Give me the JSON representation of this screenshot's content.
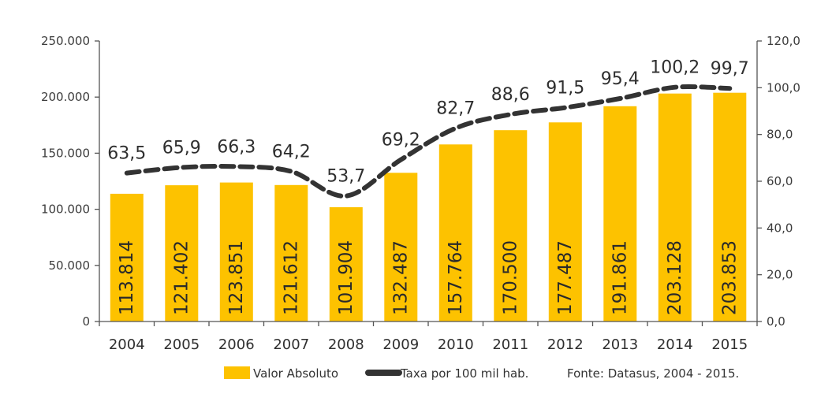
{
  "chart_data": {
    "type": "bar",
    "categories": [
      "2004",
      "2005",
      "2006",
      "2007",
      "2008",
      "2009",
      "2010",
      "2011",
      "2012",
      "2013",
      "2014",
      "2015"
    ],
    "series": [
      {
        "name": "Valor Absoluto",
        "type": "bar",
        "axis": "left",
        "values": [
          113814,
          121402,
          123851,
          121612,
          101904,
          132487,
          157764,
          170500,
          177487,
          191861,
          203128,
          203853
        ],
        "labels": [
          "113.814",
          "121.402",
          "123.851",
          "121.612",
          "101.904",
          "132.487",
          "157.764",
          "170.500",
          "177.487",
          "191.861",
          "203.128",
          "203.853"
        ]
      },
      {
        "name": "Taxa por 100 mil hab.",
        "type": "line",
        "axis": "right",
        "values": [
          63.5,
          65.9,
          66.3,
          64.2,
          53.7,
          69.2,
          82.7,
          88.6,
          91.5,
          95.4,
          100.2,
          99.7
        ],
        "labels": [
          "63,5",
          "65,9",
          "66,3",
          "64,2",
          "53,7",
          "69,2",
          "82,7",
          "88,6",
          "91,5",
          "95,4",
          "100,2",
          "99,7"
        ]
      }
    ],
    "y_left": {
      "ylim": [
        0,
        250000
      ],
      "ticks": [
        "0",
        "50.000",
        "100.000",
        "150.000",
        "200.000",
        "250.000"
      ]
    },
    "y_right": {
      "ylim": [
        0,
        120
      ],
      "ticks": [
        "0,0",
        "20,0",
        "40,0",
        "60,0",
        "80,0",
        "100,0",
        "120,0"
      ]
    },
    "legend_position": "bottom",
    "source_note": "Fonte: Datasus, 2004 - 2015.",
    "grid": false
  },
  "colors": {
    "bar": "#FDC200",
    "line": "#333333",
    "axis": "#555555"
  }
}
